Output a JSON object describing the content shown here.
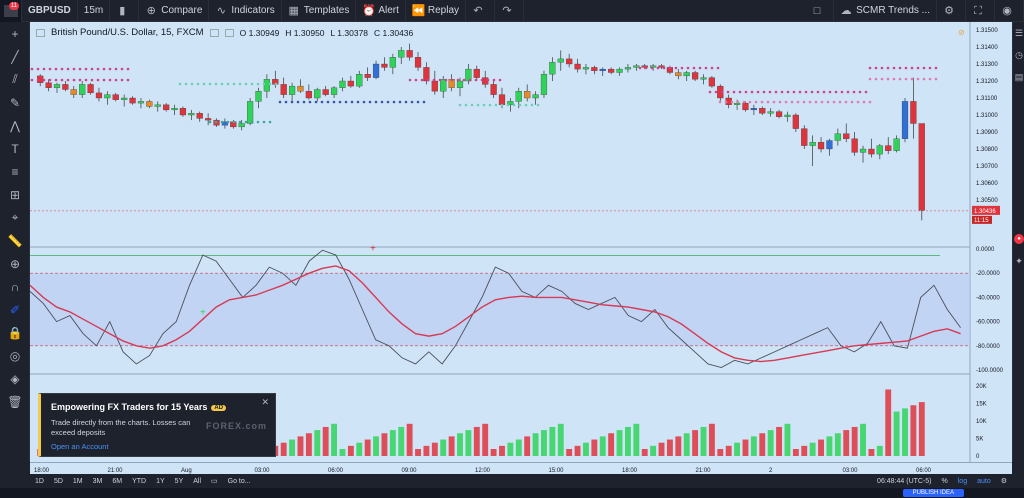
{
  "topbar": {
    "symbol": "GBPUSD",
    "interval": "15m",
    "compare": "Compare",
    "indicators": "Indicators",
    "templates": "Templates",
    "alert": "Alert",
    "replay": "Replay",
    "layout": "SCMR Trends ...",
    "badge": "11"
  },
  "legend": {
    "title": "British Pound/U.S. Dollar, 15, FXCM",
    "open": "O 1.30949",
    "high": "H 1.30950",
    "low": "L 1.30378",
    "close": "C 1.30436"
  },
  "price_axis": {
    "labels": [
      "1.31500",
      "1.31400",
      "1.31300",
      "1.31200",
      "1.31100",
      "1.31000",
      "1.30900",
      "1.30800",
      "1.30700",
      "1.30600",
      "1.30500"
    ],
    "current_price": "1.30436",
    "countdown": "11:15"
  },
  "osc_axis": {
    "labels": [
      "0.0000",
      "-20.0000",
      "-40.0000",
      "-60.0000",
      "-80.0000",
      "-100.0000"
    ]
  },
  "vol_axis": {
    "labels": [
      "20K",
      "15K",
      "10K",
      "5K",
      "0"
    ]
  },
  "time_axis": {
    "labels": [
      "18:00",
      "21:00",
      "Aug",
      "03:00",
      "06:00",
      "09:00",
      "12:00",
      "15:00",
      "18:00",
      "21:00",
      "2",
      "03:00",
      "06:00"
    ]
  },
  "toast": {
    "title": "Empowering FX Traders for 15 Years",
    "badge": "AD",
    "body": "Trade directly from the charts. Losses can exceed deposits",
    "link": "Open an Account",
    "brand": "FOREX.com"
  },
  "bottombar": {
    "ranges": [
      "1D",
      "5D",
      "1M",
      "3M",
      "6M",
      "YTD",
      "1Y",
      "5Y",
      "All"
    ],
    "goto": "Go to...",
    "clock": "06:48:44 (UTC-5)",
    "percent": "%",
    "log": "log",
    "auto": "auto"
  },
  "footer": {
    "publish": "PUBLISH IDEA"
  },
  "colors": {
    "chart_bg": "#cfe4f7",
    "up": "#2fd35a",
    "down": "#e0343d",
    "magenta_dots": "#d0408f",
    "blue_dots": "#3654a8",
    "teal_dots": "#3aa89a"
  },
  "chart_data": {
    "type": "candlestick",
    "candles": [
      [
        1.3123,
        1.3124,
        1.3117,
        1.3119
      ],
      [
        1.3119,
        1.3121,
        1.3114,
        1.3116
      ],
      [
        1.3116,
        1.3119,
        1.3113,
        1.3118
      ],
      [
        1.3118,
        1.312,
        1.3114,
        1.3115
      ],
      [
        1.3115,
        1.3117,
        1.311,
        1.3112
      ],
      [
        1.3112,
        1.312,
        1.311,
        1.3118
      ],
      [
        1.3118,
        1.3119,
        1.3112,
        1.3113
      ],
      [
        1.3113,
        1.3116,
        1.3108,
        1.311
      ],
      [
        1.311,
        1.3114,
        1.3106,
        1.3112
      ],
      [
        1.3112,
        1.3113,
        1.3108,
        1.3109
      ],
      [
        1.3109,
        1.3112,
        1.3105,
        1.311
      ],
      [
        1.311,
        1.3111,
        1.3106,
        1.3107
      ],
      [
        1.3107,
        1.311,
        1.3104,
        1.3108
      ],
      [
        1.3108,
        1.3109,
        1.3104,
        1.3105
      ],
      [
        1.3105,
        1.3108,
        1.3102,
        1.3106
      ],
      [
        1.3106,
        1.3107,
        1.3102,
        1.3103
      ],
      [
        1.3103,
        1.3106,
        1.31,
        1.3104
      ],
      [
        1.3104,
        1.3105,
        1.3099,
        1.31
      ],
      [
        1.31,
        1.3103,
        1.3097,
        1.3101
      ],
      [
        1.3101,
        1.3102,
        1.3096,
        1.3098
      ],
      [
        1.3098,
        1.3101,
        1.3094,
        1.3097
      ],
      [
        1.3097,
        1.3098,
        1.3093,
        1.3094
      ],
      [
        1.3094,
        1.3098,
        1.3092,
        1.3096
      ],
      [
        1.3096,
        1.3097,
        1.3092,
        1.3093
      ],
      [
        1.3093,
        1.3097,
        1.3091,
        1.3095
      ],
      [
        1.3095,
        1.311,
        1.3094,
        1.3108
      ],
      [
        1.3108,
        1.3116,
        1.3104,
        1.3114
      ],
      [
        1.3114,
        1.3124,
        1.311,
        1.3121
      ],
      [
        1.3121,
        1.3126,
        1.3116,
        1.3118
      ],
      [
        1.3118,
        1.3122,
        1.311,
        1.3112
      ],
      [
        1.3112,
        1.3119,
        1.3108,
        1.3117
      ],
      [
        1.3117,
        1.3121,
        1.3113,
        1.3114
      ],
      [
        1.3114,
        1.3118,
        1.3109,
        1.311
      ],
      [
        1.311,
        1.3116,
        1.3108,
        1.3115
      ],
      [
        1.3115,
        1.3117,
        1.3111,
        1.3112
      ],
      [
        1.3112,
        1.3117,
        1.311,
        1.3116
      ],
      [
        1.3116,
        1.3122,
        1.3114,
        1.312
      ],
      [
        1.312,
        1.3123,
        1.3116,
        1.3117
      ],
      [
        1.3117,
        1.3126,
        1.3116,
        1.3124
      ],
      [
        1.3124,
        1.3128,
        1.312,
        1.3122
      ],
      [
        1.3122,
        1.3132,
        1.3121,
        1.313
      ],
      [
        1.313,
        1.3134,
        1.3126,
        1.3128
      ],
      [
        1.3128,
        1.3136,
        1.3124,
        1.3134
      ],
      [
        1.3134,
        1.314,
        1.313,
        1.3138
      ],
      [
        1.3138,
        1.3142,
        1.3132,
        1.3134
      ],
      [
        1.3134,
        1.3137,
        1.3126,
        1.3128
      ],
      [
        1.3128,
        1.3131,
        1.3118,
        1.312
      ],
      [
        1.312,
        1.3126,
        1.3112,
        1.3114
      ],
      [
        1.3114,
        1.3123,
        1.311,
        1.3121
      ],
      [
        1.3121,
        1.3124,
        1.3114,
        1.3116
      ],
      [
        1.3116,
        1.3122,
        1.3111,
        1.312
      ],
      [
        1.312,
        1.313,
        1.3118,
        1.3127
      ],
      [
        1.3127,
        1.3129,
        1.312,
        1.3122
      ],
      [
        1.3122,
        1.3126,
        1.3116,
        1.3118
      ],
      [
        1.3118,
        1.3121,
        1.311,
        1.3112
      ],
      [
        1.3112,
        1.3116,
        1.3104,
        1.3106
      ],
      [
        1.3106,
        1.311,
        1.3102,
        1.3108
      ],
      [
        1.3108,
        1.3116,
        1.3104,
        1.3114
      ],
      [
        1.3114,
        1.3118,
        1.3108,
        1.311
      ],
      [
        1.311,
        1.3114,
        1.3106,
        1.3112
      ],
      [
        1.3112,
        1.3126,
        1.311,
        1.3124
      ],
      [
        1.3124,
        1.3134,
        1.312,
        1.3131
      ],
      [
        1.3131,
        1.3138,
        1.3126,
        1.3133
      ],
      [
        1.3133,
        1.3136,
        1.3128,
        1.313
      ],
      [
        1.313,
        1.3133,
        1.3125,
        1.3127
      ],
      [
        1.3127,
        1.313,
        1.3124,
        1.3128
      ],
      [
        1.3128,
        1.3129,
        1.3124,
        1.3126
      ],
      [
        1.3126,
        1.3128,
        1.3123,
        1.3127
      ],
      [
        1.3127,
        1.3128,
        1.3124,
        1.3125
      ],
      [
        1.3125,
        1.3128,
        1.3123,
        1.3127
      ],
      [
        1.3127,
        1.313,
        1.3125,
        1.3128
      ],
      [
        1.3128,
        1.313,
        1.3126,
        1.3129
      ],
      [
        1.3129,
        1.313,
        1.3127,
        1.3128
      ],
      [
        1.3128,
        1.313,
        1.3126,
        1.3129
      ],
      [
        1.3129,
        1.313,
        1.3127,
        1.3128
      ],
      [
        1.3128,
        1.3129,
        1.3124,
        1.3125
      ],
      [
        1.3125,
        1.3127,
        1.3121,
        1.3123
      ],
      [
        1.3123,
        1.3126,
        1.312,
        1.3125
      ],
      [
        1.3125,
        1.3126,
        1.312,
        1.3121
      ],
      [
        1.3121,
        1.3124,
        1.3118,
        1.3122
      ],
      [
        1.3122,
        1.3123,
        1.3116,
        1.3117
      ],
      [
        1.3117,
        1.3118,
        1.3108,
        1.311
      ],
      [
        1.311,
        1.3112,
        1.3104,
        1.3106
      ],
      [
        1.3106,
        1.3109,
        1.3103,
        1.3107
      ],
      [
        1.3107,
        1.3108,
        1.3102,
        1.3103
      ],
      [
        1.3103,
        1.3106,
        1.31,
        1.3104
      ],
      [
        1.3104,
        1.3105,
        1.31,
        1.3101
      ],
      [
        1.3101,
        1.3104,
        1.3099,
        1.3102
      ],
      [
        1.3102,
        1.3103,
        1.3098,
        1.3099
      ],
      [
        1.3099,
        1.3102,
        1.3096,
        1.31
      ],
      [
        1.31,
        1.3101,
        1.309,
        1.3092
      ],
      [
        1.3092,
        1.3094,
        1.308,
        1.3082
      ],
      [
        1.3082,
        1.3088,
        1.307,
        1.3084
      ],
      [
        1.3084,
        1.3087,
        1.3078,
        1.308
      ],
      [
        1.308,
        1.3086,
        1.3076,
        1.3085
      ],
      [
        1.3085,
        1.3092,
        1.3082,
        1.3089
      ],
      [
        1.3089,
        1.3095,
        1.3084,
        1.3086
      ],
      [
        1.3086,
        1.309,
        1.3076,
        1.3078
      ],
      [
        1.3078,
        1.3082,
        1.3072,
        1.308
      ],
      [
        1.308,
        1.3086,
        1.3075,
        1.3077
      ],
      [
        1.3077,
        1.3083,
        1.3074,
        1.3082
      ],
      [
        1.3082,
        1.3087,
        1.3077,
        1.3079
      ],
      [
        1.3079,
        1.3088,
        1.3078,
        1.3086
      ],
      [
        1.3086,
        1.311,
        1.3084,
        1.3108
      ],
      [
        1.3108,
        1.3122,
        1.3086,
        1.3095
      ],
      [
        1.3095,
        1.3095,
        1.3038,
        1.3044
      ]
    ]
  }
}
